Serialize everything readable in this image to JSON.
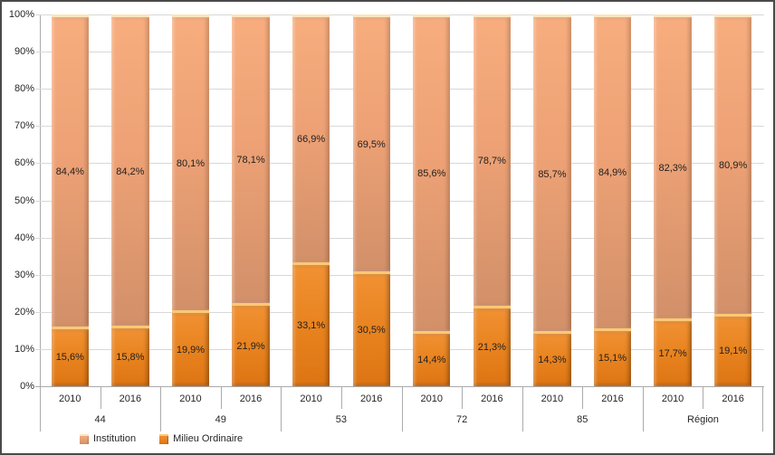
{
  "colors": {
    "institution_fill_top": "#F7AD7E",
    "institution_fill_bottom": "#D29069",
    "institution_highlight": "#FBE4BC",
    "milieu_fill_top": "#F19133",
    "milieu_fill_bottom": "#DD7413",
    "milieu_highlight": "#FFC873",
    "gridline": "#D8D8D8",
    "axis_line": "#ABABAB",
    "text": "#262626",
    "background": "#FFFFFF",
    "outer_border": "#4A4A4A"
  },
  "chart_data": {
    "type": "bar",
    "variant": "100%-stacked-column",
    "title": "",
    "xlabel": "",
    "ylabel": "",
    "ylim": [
      0,
      100
    ],
    "grid": true,
    "legend_position": "bottom-left",
    "y_ticks": [
      "100%",
      "90%",
      "80%",
      "70%",
      "60%",
      "50%",
      "40%",
      "30%",
      "20%",
      "10%",
      "0%"
    ],
    "groups": [
      "44",
      "49",
      "53",
      "72",
      "85",
      "Région"
    ],
    "categories": [
      "2010",
      "2016",
      "2010",
      "2016",
      "2010",
      "2016",
      "2010",
      "2016",
      "2010",
      "2016",
      "2010",
      "2016"
    ],
    "series": [
      {
        "name": "Institution",
        "values": [
          84.4,
          84.2,
          80.1,
          78.1,
          66.9,
          69.5,
          85.6,
          78.7,
          85.7,
          84.9,
          82.3,
          80.9
        ],
        "labels": [
          "84,4%",
          "84,2%",
          "80,1%",
          "78,1%",
          "66,9%",
          "69,5%",
          "85,6%",
          "78,7%",
          "85,7%",
          "84,9%",
          "82,3%",
          "80,9%"
        ]
      },
      {
        "name": "Milieu Ordinaire",
        "values": [
          15.6,
          15.8,
          19.9,
          21.9,
          33.1,
          30.5,
          14.4,
          21.3,
          14.3,
          15.1,
          17.7,
          19.1
        ],
        "labels": [
          "15,6%",
          "15,8%",
          "19,9%",
          "21,9%",
          "33,1%",
          "30,5%",
          "14,4%",
          "21,3%",
          "14,3%",
          "15,1%",
          "17,7%",
          "19,1%"
        ]
      }
    ]
  },
  "legend": {
    "items": [
      {
        "label": "Institution"
      },
      {
        "label": "Milieu Ordinaire"
      }
    ]
  }
}
